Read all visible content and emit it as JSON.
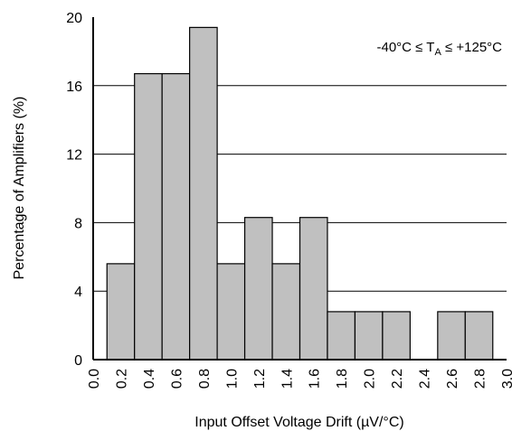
{
  "chart_data": {
    "type": "bar",
    "title": "",
    "annotation": {
      "prefix": "-40°C ≤ T",
      "subscript": "A",
      "suffix": " ≤ +125°C"
    },
    "xlabel": "Input Offset Voltage Drift (µV/°C)",
    "ylabel": "Percentage of Amplifiers (%)",
    "xlim": [
      0.0,
      3.0
    ],
    "ylim": [
      0,
      20
    ],
    "xtick_labels": [
      "0.0",
      "0.2",
      "0.4",
      "0.6",
      "0.8",
      "1.0",
      "1.2",
      "1.4",
      "1.6",
      "1.8",
      "2.0",
      "2.2",
      "2.4",
      "2.6",
      "2.8",
      "3.0"
    ],
    "ytick_labels": [
      "0",
      "4",
      "8",
      "12",
      "16",
      "20"
    ],
    "bin_width": 0.2,
    "bins": [
      {
        "start": 0.1,
        "value": 5.6
      },
      {
        "start": 0.3,
        "value": 16.7
      },
      {
        "start": 0.5,
        "value": 16.7
      },
      {
        "start": 0.7,
        "value": 19.4
      },
      {
        "start": 0.9,
        "value": 5.6
      },
      {
        "start": 1.1,
        "value": 8.3
      },
      {
        "start": 1.3,
        "value": 5.6
      },
      {
        "start": 1.5,
        "value": 8.3
      },
      {
        "start": 1.7,
        "value": 2.8
      },
      {
        "start": 1.9,
        "value": 2.8
      },
      {
        "start": 2.1,
        "value": 2.8
      },
      {
        "start": 2.5,
        "value": 2.8
      },
      {
        "start": 2.7,
        "value": 2.8
      }
    ],
    "grid": "horizontal",
    "bar_color": "#c0c0c0",
    "bar_edge_color": "#000000"
  }
}
